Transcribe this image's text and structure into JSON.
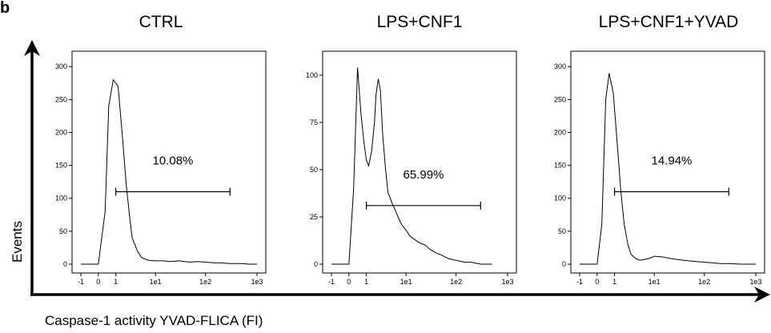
{
  "figure": {
    "panel_letter": "b",
    "y_axis_title": "Events",
    "x_axis_title": "Caspase-1 activity YVAD-FLICA (FI)",
    "colors": {
      "line": "#000000",
      "background": "#ffffff"
    }
  },
  "chart_data": [
    {
      "type": "line",
      "title": "CTRL",
      "x_scale": "log",
      "x_ticks": [
        "-1",
        "0",
        "1",
        "1e1",
        "1e2",
        "1e3"
      ],
      "y_ticks": [
        "0",
        "50",
        "100",
        "150",
        "200",
        "250",
        "300"
      ],
      "ylim": [
        0,
        310
      ],
      "gate": {
        "label": "10.08%",
        "from": "1",
        "to": "3e2",
        "y": 110
      },
      "series": [
        {
          "x": [
            -1,
            0,
            0.3,
            0.5,
            0.8,
            1.2,
            1.6,
            2.1,
            2.6,
            3,
            4,
            5,
            7,
            10,
            15,
            20,
            30,
            50,
            70,
            100,
            150,
            200,
            300,
            500,
            700,
            1000
          ],
          "y": [
            0,
            0,
            80,
            240,
            280,
            270,
            200,
            120,
            70,
            40,
            20,
            10,
            6,
            5,
            5,
            4,
            5,
            3,
            4,
            3,
            2,
            2,
            1,
            1,
            0,
            0
          ]
        }
      ]
    },
    {
      "type": "line",
      "title": "LPS+CNF1",
      "x_scale": "log",
      "x_ticks": [
        "-1",
        "0",
        "1",
        "1e1",
        "1e2",
        "1e3"
      ],
      "y_ticks": [
        "0",
        "25",
        "50",
        "75",
        "100"
      ],
      "ylim": [
        0,
        108
      ],
      "gate": {
        "label": "65.99%",
        "from": "1",
        "to": "3e2",
        "y": 31
      },
      "series": [
        {
          "x": [
            -1,
            0,
            0.2,
            0.4,
            0.6,
            0.8,
            1,
            1.2,
            1.5,
            1.8,
            2,
            2.3,
            2.6,
            3,
            3.5,
            4,
            5,
            6,
            7,
            8,
            10,
            12,
            15,
            20,
            25,
            30,
            40,
            50,
            70,
            100,
            150,
            200,
            300,
            500
          ],
          "y": [
            0,
            0,
            40,
            104,
            80,
            65,
            55,
            52,
            60,
            75,
            90,
            98,
            92,
            68,
            50,
            38,
            32,
            28,
            24,
            21,
            18,
            15,
            13,
            11,
            10,
            8,
            6,
            5,
            3,
            2,
            1,
            1,
            0,
            0
          ]
        }
      ]
    },
    {
      "type": "line",
      "title": "LPS+CNF1+YVAD",
      "x_scale": "log",
      "x_ticks": [
        "-1",
        "0",
        "1",
        "1e1",
        "1e2",
        "1e3"
      ],
      "y_ticks": [
        "0",
        "50",
        "100",
        "150",
        "200",
        "250",
        "300"
      ],
      "ylim": [
        0,
        310
      ],
      "gate": {
        "label": "14.94%",
        "from": "1",
        "to": "3e2",
        "y": 110
      },
      "series": [
        {
          "x": [
            -1,
            0,
            0.2,
            0.4,
            0.6,
            0.9,
            1.2,
            1.6,
            2,
            2.5,
            3,
            4,
            5,
            6,
            8,
            10,
            15,
            20,
            30,
            50,
            70,
            100,
            150,
            200,
            300,
            500,
            1000
          ],
          "y": [
            0,
            0,
            60,
            250,
            290,
            260,
            190,
            110,
            60,
            30,
            15,
            8,
            6,
            7,
            9,
            12,
            11,
            9,
            7,
            5,
            4,
            3,
            2,
            1,
            1,
            0,
            0
          ]
        }
      ]
    }
  ]
}
